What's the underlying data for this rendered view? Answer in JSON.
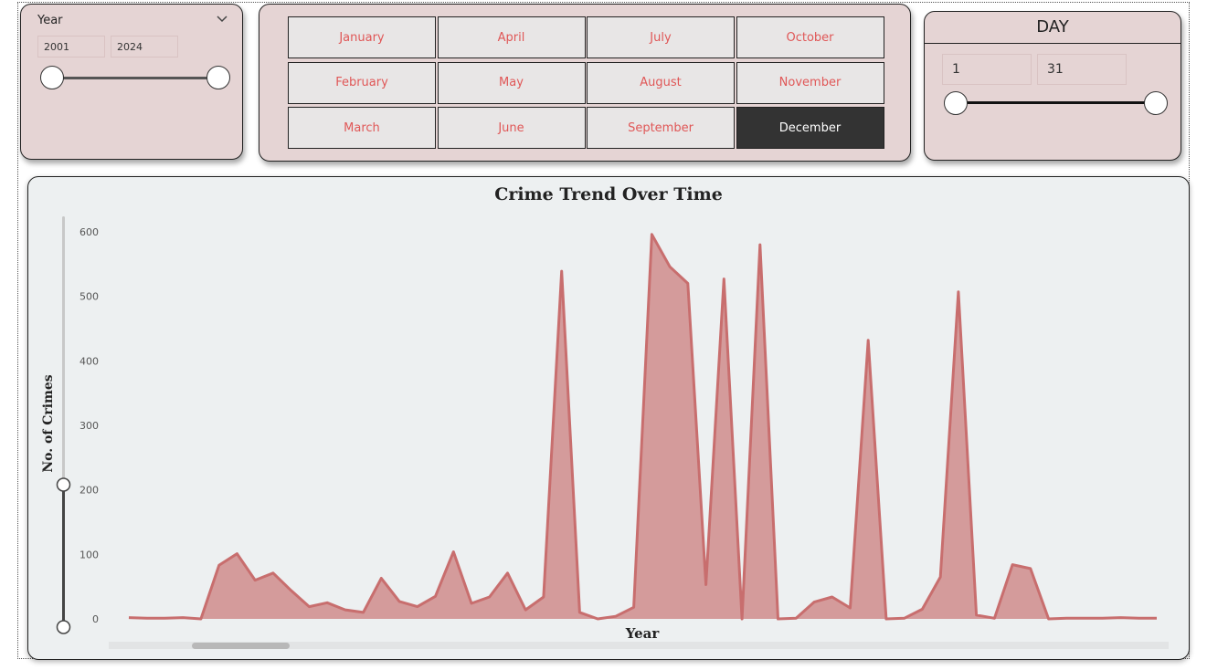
{
  "year_slicer": {
    "title": "Year",
    "icon": "chevron-down-icon",
    "from": "2001",
    "to": "2024"
  },
  "month_slicer": {
    "months": [
      "January",
      "April",
      "July",
      "October",
      "February",
      "May",
      "August",
      "November",
      "March",
      "June",
      "September",
      "December"
    ],
    "selected": "December",
    "colors": {
      "text": "#e05757",
      "selected_bg": "#333333",
      "selected_text": "#ffffff",
      "button_bg": "#e8e6e6"
    }
  },
  "day_slicer": {
    "title": "DAY",
    "from": "1",
    "to": "31"
  },
  "colors": {
    "card_bg": "#e5d4d4",
    "chart_bg": "#edf0f1",
    "area_fill": "#d49b9b",
    "area_stroke": "#c86e6e"
  },
  "chart_data": {
    "type": "area",
    "title": "Crime Trend Over Time",
    "xlabel": "Year",
    "ylabel": "No. of Crimes",
    "yticks": [
      0,
      100,
      200,
      300,
      400,
      500,
      600
    ],
    "ylim": [
      0,
      600
    ],
    "grid": false,
    "zoom_slider_range": [
      0,
      200
    ],
    "values": [
      2,
      1,
      1,
      2,
      0,
      83,
      101,
      60,
      71,
      44,
      19,
      25,
      14,
      10,
      63,
      27,
      19,
      35,
      104,
      24,
      34,
      71,
      14,
      34,
      539,
      10,
      0,
      4,
      18,
      596,
      546,
      520,
      53,
      527,
      0,
      580,
      0,
      1,
      26,
      34,
      17,
      432,
      0,
      1,
      15,
      65,
      507,
      6,
      1,
      84,
      78,
      0,
      1,
      1,
      1,
      2,
      1,
      1
    ]
  }
}
